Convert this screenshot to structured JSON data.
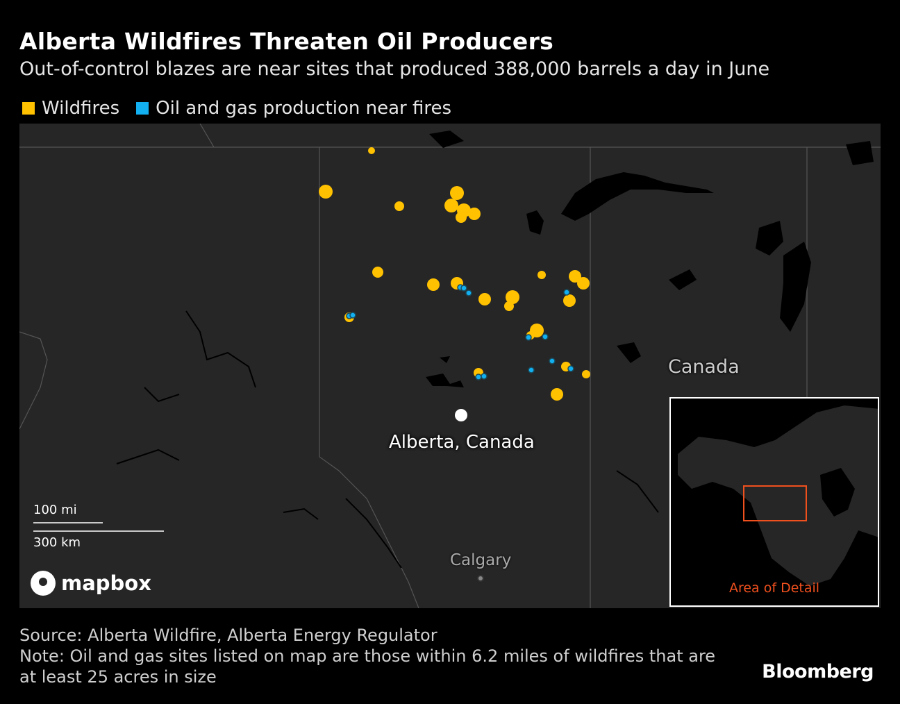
{
  "header": {
    "title": "Alberta Wildfires Threaten Oil Producers",
    "subtitle": "Out-of-control blazes are near sites that produced 388,000 barrels a day in June"
  },
  "legend": {
    "items": [
      {
        "label": "Wildfires",
        "color": "#ffc100"
      },
      {
        "label": "Oil and gas production near fires",
        "color": "#12b0f0"
      }
    ]
  },
  "map": {
    "labels": {
      "country": "Canada",
      "marker": "Alberta, Canada",
      "city": "Calgary"
    },
    "scale": {
      "miles": "100 mi",
      "km": "300 km"
    },
    "attribution": "mapbox",
    "inset": {
      "label": "Area of Detail",
      "highlight_color": "#f0501e"
    }
  },
  "footer": {
    "source": "Source: Alberta Wildfire, Alberta Energy Regulator",
    "note": "Note: Oil and gas sites listed on map are those within 6.2 miles of wildfires that are at least 25 acres in size",
    "brand": "Bloomberg"
  }
}
